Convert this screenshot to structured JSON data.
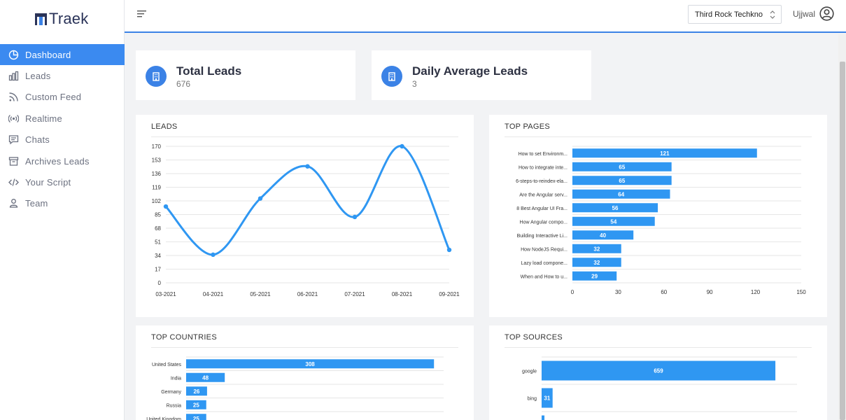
{
  "app": {
    "name": "Traek"
  },
  "sidebar": {
    "items": [
      {
        "label": "Dashboard",
        "icon": "pie-chart-icon",
        "active": true
      },
      {
        "label": "Leads",
        "icon": "bar-chart-icon",
        "active": false
      },
      {
        "label": "Custom Feed",
        "icon": "rss-icon",
        "active": false
      },
      {
        "label": "Realtime",
        "icon": "broadcast-icon",
        "active": false
      },
      {
        "label": "Chats",
        "icon": "chat-icon",
        "active": false
      },
      {
        "label": "Archives Leads",
        "icon": "archive-icon",
        "active": false
      },
      {
        "label": "Your Script",
        "icon": "code-icon",
        "active": false
      },
      {
        "label": "Team",
        "icon": "team-icon",
        "active": false
      }
    ]
  },
  "header": {
    "company": "Third Rock Techkno",
    "user": "Ujjwal"
  },
  "stats": [
    {
      "title": "Total Leads",
      "value": "676"
    },
    {
      "title": "Daily Average Leads",
      "value": "3"
    }
  ],
  "colors": {
    "accent": "#3b82e6",
    "bar": "#2f97f2",
    "active_nav": "#3b8af0"
  },
  "chart_data": [
    {
      "type": "line",
      "title": "LEADS",
      "x": [
        "03-2021",
        "04-2021",
        "05-2021",
        "06-2021",
        "07-2021",
        "08-2021",
        "09-2021"
      ],
      "y": [
        95,
        35,
        105,
        145,
        82,
        170,
        41
      ],
      "yticks": [
        0,
        17,
        34,
        51,
        68,
        85,
        102,
        119,
        136,
        153,
        170
      ],
      "ylim": [
        0,
        170
      ],
      "grid": true
    },
    {
      "type": "bar",
      "orientation": "horizontal",
      "title": "TOP PAGES",
      "categories": [
        "How to set Environm...",
        "How to integrate inte...",
        "6-steps-to-reindex-ela...",
        "Are the Angular serv...",
        "8 Best Angular UI Fra...",
        "How Angular compo...",
        "Building Interactive Li...",
        "How NodeJS Requi...",
        "Lazy load compone...",
        "When and How to u..."
      ],
      "values": [
        121,
        65,
        65,
        64,
        56,
        54,
        40,
        32,
        32,
        29
      ],
      "xticks": [
        0,
        30,
        60,
        90,
        120,
        150
      ],
      "xlim": [
        0,
        150
      ],
      "grid": true
    },
    {
      "type": "bar",
      "orientation": "horizontal",
      "title": "TOP COUNTRIES",
      "categories": [
        "United States",
        "India",
        "Germany",
        "Russia",
        "United Kingdom"
      ],
      "values": [
        308,
        48,
        26,
        25,
        25
      ],
      "xlim": [
        0,
        320
      ],
      "grid": true
    },
    {
      "type": "bar",
      "orientation": "horizontal",
      "title": "TOP SOURCES",
      "categories": [
        "google",
        "bing",
        ""
      ],
      "values": [
        659,
        31,
        8
      ],
      "xlim": [
        0,
        720
      ],
      "grid": true
    }
  ]
}
